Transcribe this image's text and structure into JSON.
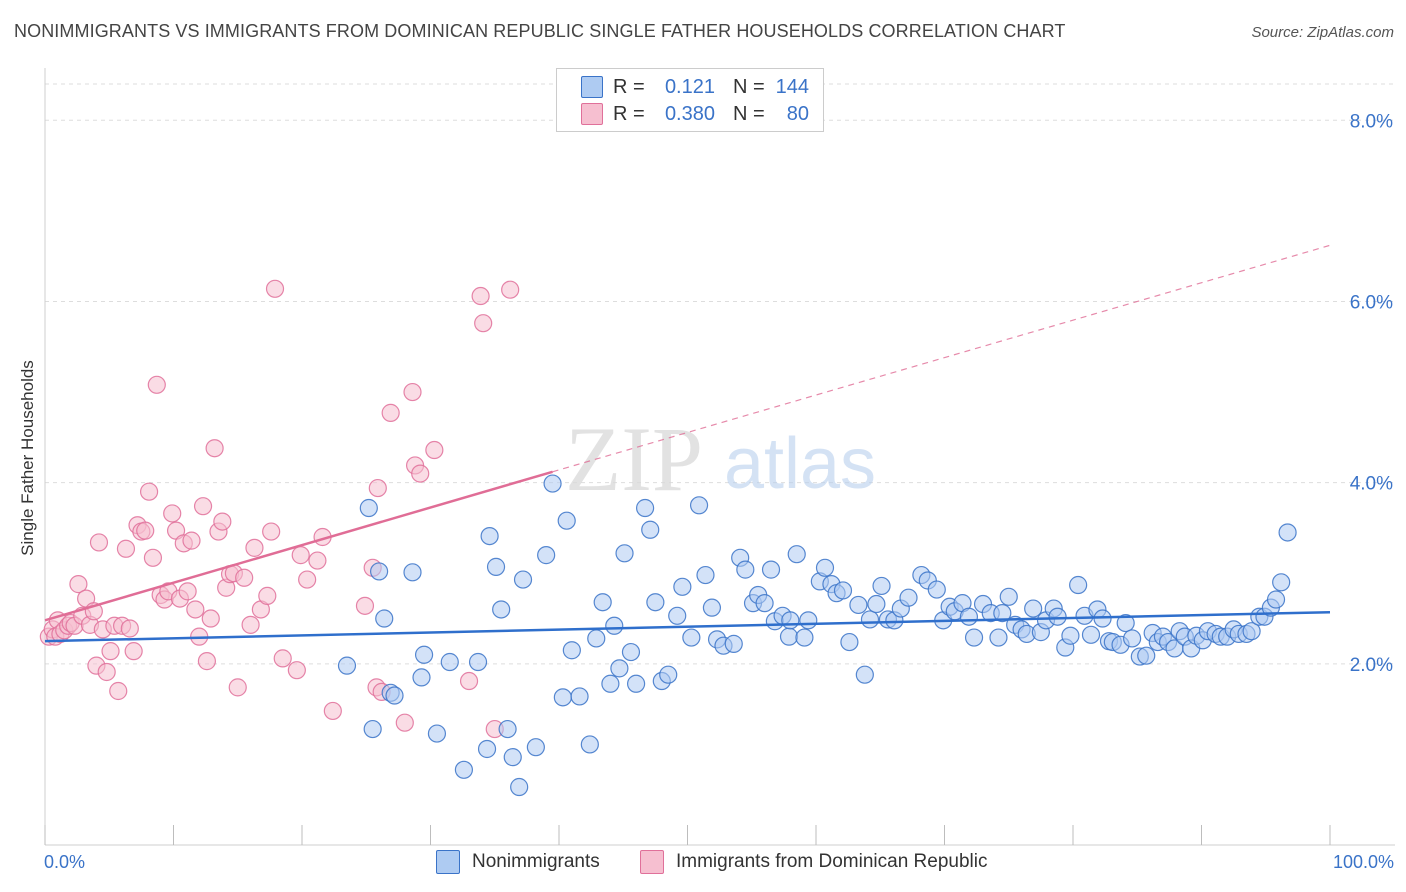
{
  "header": {
    "title": "NONIMMIGRANTS VS IMMIGRANTS FROM DOMINICAN REPUBLIC SINGLE FATHER HOUSEHOLDS CORRELATION CHART",
    "source": "Source: ZipAtlas.com"
  },
  "watermark": {
    "zip": "ZIP",
    "atlas": "atlas"
  },
  "colors": {
    "blue": "#3a73c8",
    "blue_fill": "#aecbf2",
    "blue_line": "#2f6fcc",
    "pink": "#e0709a",
    "pink_fill": "#f6bfd0",
    "pink_line": "#e06d96",
    "grid": "#dddddd"
  },
  "legend_top": {
    "rows": [
      {
        "r_label": "R =",
        "r_value": "0.121",
        "n_label": "N =",
        "n_value": "144",
        "series": "blue"
      },
      {
        "r_label": "R =",
        "r_value": "0.380",
        "n_label": "N =",
        "n_value": "80",
        "series": "pink"
      }
    ]
  },
  "legend_bottom": {
    "items": [
      {
        "label": "Nonimmigrants",
        "series": "blue"
      },
      {
        "label": "Immigrants from Dominican Republic",
        "series": "pink"
      }
    ]
  },
  "chart_data": {
    "type": "scatter",
    "title": "NONIMMIGRANTS VS IMMIGRANTS FROM DOMINICAN REPUBLIC SINGLE FATHER HOUSEHOLDS CORRELATION CHART",
    "xlabel": "",
    "ylabel": "Single Father Households",
    "xlim": [
      0,
      100
    ],
    "ylim": [
      0,
      8.5
    ],
    "x_tick_labels": [
      "0.0%",
      "100.0%"
    ],
    "y_ticks": [
      2.0,
      4.0,
      6.0,
      8.0
    ],
    "y_tick_labels": [
      "2.0%",
      "4.0%",
      "6.0%",
      "8.0%"
    ],
    "grid": true,
    "legend_position": "top-center",
    "series": [
      {
        "name": "Nonimmigrants",
        "color": "blue",
        "trend": {
          "x": [
            0,
            100
          ],
          "y": [
            2.25,
            2.57
          ],
          "style": "solid"
        },
        "points": [
          [
            23.5,
            1.98
          ],
          [
            25.5,
            1.28
          ],
          [
            25.2,
            3.72
          ],
          [
            26,
            3.02
          ],
          [
            26.4,
            2.5
          ],
          [
            26.9,
            1.68
          ],
          [
            27.2,
            1.65
          ],
          [
            28.6,
            3.01
          ],
          [
            29.3,
            1.85
          ],
          [
            29.5,
            2.1
          ],
          [
            30.5,
            1.23
          ],
          [
            31.5,
            2.02
          ],
          [
            32.6,
            0.83
          ],
          [
            33.7,
            2.02
          ],
          [
            34.4,
            1.06
          ],
          [
            34.6,
            3.41
          ],
          [
            35.1,
            3.07
          ],
          [
            35.5,
            2.6
          ],
          [
            36,
            1.28
          ],
          [
            36.4,
            0.97
          ],
          [
            36.9,
            0.64
          ],
          [
            37.2,
            2.93
          ],
          [
            38.2,
            1.08
          ],
          [
            39,
            3.2
          ],
          [
            39.5,
            3.99
          ],
          [
            40.3,
            1.63
          ],
          [
            40.6,
            3.58
          ],
          [
            41,
            2.15
          ],
          [
            41.6,
            1.64
          ],
          [
            42.4,
            1.11
          ],
          [
            42.9,
            2.28
          ],
          [
            43.4,
            2.68
          ],
          [
            44.3,
            2.42
          ],
          [
            44.7,
            1.95
          ],
          [
            45.1,
            3.22
          ],
          [
            45.6,
            2.13
          ],
          [
            46,
            1.78
          ],
          [
            46.7,
            3.72
          ],
          [
            47.1,
            3.48
          ],
          [
            47.5,
            2.68
          ],
          [
            48,
            1.81
          ],
          [
            48.5,
            1.88
          ],
          [
            49.2,
            2.53
          ],
          [
            49.6,
            2.85
          ],
          [
            50.3,
            2.29
          ],
          [
            50.9,
            3.75
          ],
          [
            51.4,
            2.98
          ],
          [
            51.9,
            2.62
          ],
          [
            52.3,
            2.27
          ],
          [
            52.8,
            2.2
          ],
          [
            53.6,
            2.22
          ],
          [
            54.1,
            3.17
          ],
          [
            54.5,
            3.04
          ],
          [
            55.1,
            2.67
          ],
          [
            55.5,
            2.76
          ],
          [
            56,
            2.67
          ],
          [
            56.5,
            3.04
          ],
          [
            56.8,
            2.47
          ],
          [
            57.4,
            2.53
          ],
          [
            57.9,
            2.3
          ],
          [
            58.5,
            3.21
          ],
          [
            59.1,
            2.29
          ],
          [
            59.4,
            2.48
          ],
          [
            60.3,
            2.91
          ],
          [
            60.7,
            3.06
          ],
          [
            61.2,
            2.88
          ],
          [
            61.6,
            2.78
          ],
          [
            62.1,
            2.81
          ],
          [
            62.6,
            2.24
          ],
          [
            63.3,
            2.65
          ],
          [
            63.8,
            1.88
          ],
          [
            64.2,
            2.49
          ],
          [
            64.7,
            2.66
          ],
          [
            65.1,
            2.86
          ],
          [
            65.6,
            2.49
          ],
          [
            66.1,
            2.48
          ],
          [
            66.6,
            2.61
          ],
          [
            67.2,
            2.73
          ],
          [
            68.2,
            2.98
          ],
          [
            68.7,
            2.92
          ],
          [
            69.4,
            2.82
          ],
          [
            69.9,
            2.48
          ],
          [
            70.4,
            2.63
          ],
          [
            70.8,
            2.58
          ],
          [
            71.4,
            2.67
          ],
          [
            71.9,
            2.52
          ],
          [
            72.3,
            2.29
          ],
          [
            73,
            2.66
          ],
          [
            73.6,
            2.56
          ],
          [
            74.2,
            2.29
          ],
          [
            74.5,
            2.56
          ],
          [
            75,
            2.74
          ],
          [
            75.5,
            2.43
          ],
          [
            76,
            2.38
          ],
          [
            76.4,
            2.33
          ],
          [
            76.9,
            2.61
          ],
          [
            77.5,
            2.35
          ],
          [
            77.9,
            2.48
          ],
          [
            78.5,
            2.61
          ],
          [
            78.8,
            2.52
          ],
          [
            79.4,
            2.18
          ],
          [
            79.8,
            2.31
          ],
          [
            80.4,
            2.87
          ],
          [
            80.9,
            2.53
          ],
          [
            81.4,
            2.32
          ],
          [
            81.9,
            2.6
          ],
          [
            82.3,
            2.5
          ],
          [
            82.8,
            2.25
          ],
          [
            83.1,
            2.24
          ],
          [
            83.7,
            2.21
          ],
          [
            84.1,
            2.45
          ],
          [
            84.6,
            2.28
          ],
          [
            85.2,
            2.08
          ],
          [
            85.7,
            2.09
          ],
          [
            86.2,
            2.34
          ],
          [
            86.6,
            2.24
          ],
          [
            87,
            2.3
          ],
          [
            87.4,
            2.24
          ],
          [
            87.9,
            2.17
          ],
          [
            88.3,
            2.36
          ],
          [
            88.7,
            2.3
          ],
          [
            89.2,
            2.17
          ],
          [
            89.6,
            2.31
          ],
          [
            90.1,
            2.26
          ],
          [
            90.5,
            2.36
          ],
          [
            91.1,
            2.33
          ],
          [
            91.5,
            2.3
          ],
          [
            92,
            2.3
          ],
          [
            92.5,
            2.38
          ],
          [
            92.9,
            2.33
          ],
          [
            93.5,
            2.33
          ],
          [
            93.9,
            2.36
          ],
          [
            94.5,
            2.52
          ],
          [
            94.9,
            2.52
          ],
          [
            95.4,
            2.62
          ],
          [
            95.8,
            2.71
          ],
          [
            96.2,
            2.9
          ],
          [
            96.7,
            3.45
          ],
          [
            44,
            1.78
          ],
          [
            58,
            2.48
          ]
        ]
      },
      {
        "name": "Immigrants from Dominican Republic",
        "color": "pink",
        "trend": {
          "x": [
            0,
            39.5
          ],
          "y": [
            2.48,
            4.12
          ],
          "style": "solid",
          "extension": {
            "x": [
              39.5,
              100
            ],
            "y": [
              4.12,
              6.62
            ],
            "style": "dashed"
          }
        },
        "points": [
          [
            0.3,
            2.3
          ],
          [
            0.6,
            2.38
          ],
          [
            0.8,
            2.3
          ],
          [
            1,
            2.48
          ],
          [
            1.2,
            2.33
          ],
          [
            1.5,
            2.37
          ],
          [
            1.8,
            2.42
          ],
          [
            2,
            2.45
          ],
          [
            2.3,
            2.42
          ],
          [
            2.6,
            2.88
          ],
          [
            2.9,
            2.53
          ],
          [
            3.2,
            2.72
          ],
          [
            3.5,
            2.43
          ],
          [
            3.8,
            2.58
          ],
          [
            4,
            1.98
          ],
          [
            4.2,
            3.34
          ],
          [
            4.5,
            2.38
          ],
          [
            4.8,
            1.91
          ],
          [
            5.1,
            2.14
          ],
          [
            5.4,
            2.42
          ],
          [
            5.7,
            1.7
          ],
          [
            6,
            2.42
          ],
          [
            6.3,
            3.27
          ],
          [
            6.6,
            2.39
          ],
          [
            6.9,
            2.14
          ],
          [
            7.2,
            3.53
          ],
          [
            7.5,
            3.46
          ],
          [
            7.8,
            3.47
          ],
          [
            8.1,
            3.9
          ],
          [
            8.4,
            3.17
          ],
          [
            8.7,
            5.08
          ],
          [
            9,
            2.76
          ],
          [
            9.3,
            2.71
          ],
          [
            9.6,
            2.8
          ],
          [
            9.9,
            3.66
          ],
          [
            10.2,
            3.47
          ],
          [
            10.5,
            2.72
          ],
          [
            10.8,
            3.33
          ],
          [
            11.1,
            2.8
          ],
          [
            11.4,
            3.36
          ],
          [
            11.7,
            2.6
          ],
          [
            12,
            2.3
          ],
          [
            12.3,
            3.74
          ],
          [
            12.6,
            2.03
          ],
          [
            12.9,
            2.5
          ],
          [
            13.2,
            4.38
          ],
          [
            13.5,
            3.46
          ],
          [
            13.8,
            3.57
          ],
          [
            14.1,
            2.84
          ],
          [
            14.4,
            2.99
          ],
          [
            14.7,
            3.0
          ],
          [
            15,
            1.74
          ],
          [
            15.5,
            2.95
          ],
          [
            16,
            2.43
          ],
          [
            16.3,
            3.28
          ],
          [
            16.8,
            2.6
          ],
          [
            17.3,
            2.75
          ],
          [
            17.6,
            3.46
          ],
          [
            17.9,
            6.14
          ],
          [
            18.5,
            2.06
          ],
          [
            19.6,
            1.93
          ],
          [
            19.9,
            3.2
          ],
          [
            20.4,
            2.93
          ],
          [
            21.2,
            3.14
          ],
          [
            21.6,
            3.4
          ],
          [
            22.4,
            1.48
          ],
          [
            24.9,
            2.64
          ],
          [
            25.5,
            3.06
          ],
          [
            25.8,
            1.74
          ],
          [
            25.9,
            3.94
          ],
          [
            26.2,
            1.69
          ],
          [
            26.9,
            4.77
          ],
          [
            28,
            1.35
          ],
          [
            28.6,
            5.0
          ],
          [
            28.8,
            4.19
          ],
          [
            29.2,
            4.1
          ],
          [
            30.3,
            4.36
          ],
          [
            33,
            1.81
          ],
          [
            33.9,
            6.06
          ],
          [
            34.1,
            5.76
          ],
          [
            35,
            1.28
          ],
          [
            36.2,
            6.13
          ]
        ]
      }
    ]
  }
}
